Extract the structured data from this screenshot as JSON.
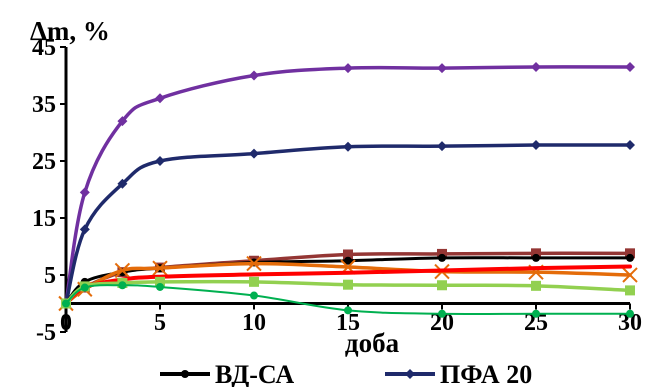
{
  "chart_data": {
    "type": "line",
    "ylabel": "Δm, %",
    "xlabel": "доба",
    "xlim": [
      0,
      30
    ],
    "ylim": [
      -5,
      45
    ],
    "x_ticks": [
      "0",
      "5",
      "10",
      "15",
      "20",
      "25",
      "30"
    ],
    "y_ticks": [
      "-5",
      "5",
      "15",
      "25",
      "35",
      "45"
    ],
    "grid": false,
    "legend_position": "bottom",
    "series": [
      {
        "name": "",
        "color": "#7030a0",
        "marker": "diamond",
        "width": 3.5,
        "x": [
          0,
          1,
          3,
          5,
          10,
          15,
          20,
          25,
          30
        ],
        "y": [
          0,
          19.5,
          32,
          36,
          40,
          41.3,
          41.3,
          41.5,
          41.5
        ]
      },
      {
        "name": "ПФА 20",
        "color": "#1f2a6b",
        "marker": "diamond",
        "width": 3.5,
        "x": [
          0,
          1,
          3,
          5,
          10,
          15,
          20,
          25,
          30
        ],
        "y": [
          0,
          13,
          21,
          25,
          26.3,
          27.5,
          27.6,
          27.8,
          27.8
        ]
      },
      {
        "name": "",
        "color": "#943634",
        "marker": "square",
        "width": 3.5,
        "x": [
          0,
          1,
          3,
          5,
          10,
          15,
          20,
          25,
          30
        ],
        "y": [
          0,
          2.8,
          5.5,
          6.3,
          7.5,
          8.6,
          8.7,
          8.8,
          8.8
        ]
      },
      {
        "name": "ВД-СА",
        "color": "#000000",
        "marker": "circle",
        "width": 3,
        "x": [
          0,
          1,
          3,
          5,
          10,
          15,
          20,
          25,
          30
        ],
        "y": [
          0,
          3.8,
          5.5,
          6.2,
          7.2,
          7.5,
          8,
          8,
          8
        ]
      },
      {
        "name": "",
        "color": "#e46c0a",
        "marker": "x",
        "width": 3.5,
        "x": [
          0,
          1,
          3,
          5,
          10,
          15,
          20,
          25,
          30
        ],
        "y": [
          0,
          2.5,
          5.8,
          6.2,
          7,
          6.4,
          5.6,
          5.5,
          5
        ]
      },
      {
        "name": "",
        "color": "#ff0000",
        "marker": "none",
        "width": 4,
        "x": [
          0,
          1,
          3,
          5,
          10,
          15,
          20,
          25,
          30
        ],
        "y": [
          0,
          2.8,
          4.2,
          4.7,
          5.1,
          5.4,
          5.8,
          6.2,
          6.5
        ]
      },
      {
        "name": "",
        "color": "#92d050",
        "marker": "square",
        "width": 3.5,
        "x": [
          0,
          1,
          3,
          5,
          10,
          15,
          20,
          25,
          30
        ],
        "y": [
          0,
          3,
          3.6,
          3.8,
          3.8,
          3.3,
          3.2,
          3.1,
          2.3
        ]
      },
      {
        "name": "",
        "color": "#00b050",
        "marker": "circle",
        "width": 2,
        "x": [
          0,
          1,
          3,
          5,
          10,
          15,
          20,
          25,
          30
        ],
        "y": [
          0,
          2.8,
          3.2,
          2.9,
          1.4,
          -1.2,
          -1.8,
          -1.8,
          -1.8
        ]
      }
    ],
    "legend": [
      {
        "label": "ВД-СА",
        "color": "#000000",
        "marker": "circle"
      },
      {
        "label": "ПФА 20",
        "color": "#1f2a6b",
        "marker": "diamond"
      }
    ]
  }
}
